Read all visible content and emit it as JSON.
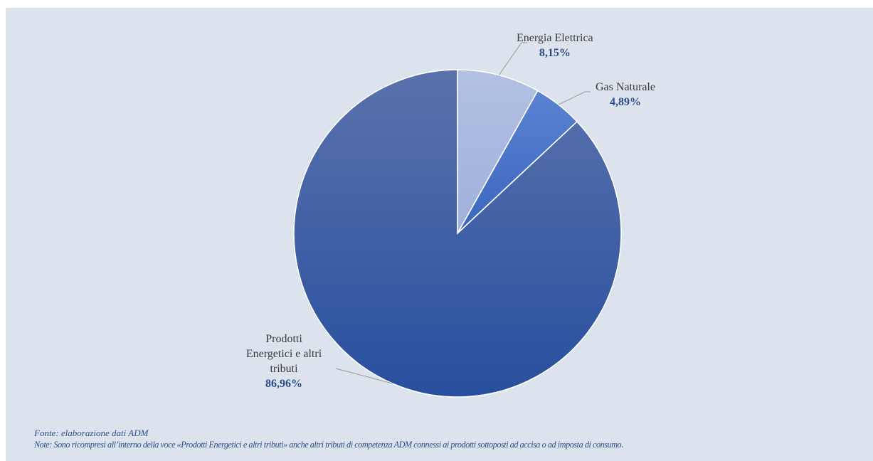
{
  "chart_data": {
    "type": "pie",
    "categories": [
      "Energia Elettrica",
      "Gas Naturale",
      "Prodotti Energetici e altri tributi"
    ],
    "values": [
      8.15,
      4.89,
      86.96
    ],
    "value_labels": [
      "8,15%",
      "4,89%",
      "86,96%"
    ],
    "title": "",
    "start_angle": "12 o'clock, clockwise",
    "colors": [
      "#a8b7df",
      "#4472c4",
      "#2f55a4"
    ]
  },
  "labels": {
    "energia_name": "Energia Elettrica",
    "energia_value": "8,15%",
    "gas_name": "Gas Naturale",
    "gas_value": "4,89%",
    "prodotti_name_1": "Prodotti",
    "prodotti_name_2": "Energetici e altri",
    "prodotti_name_3": "tributi",
    "prodotti_value": "86,96%"
  },
  "footer": {
    "source": "Fonte: elaborazione dati ADM",
    "note": "Note: Sono ricompresi all’interno della voce «Prodotti Energetici e altri tributi» anche altri tributi di competenza ADM connessi ai prodotti sottoposti ad accisa o ad imposta di consumo."
  }
}
